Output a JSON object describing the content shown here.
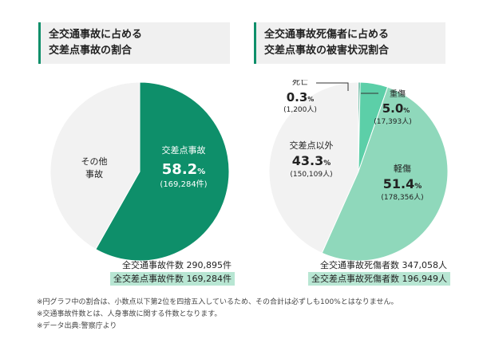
{
  "left": {
    "title_lines": [
      "全交通事故に占める",
      "交差点事故の割合"
    ],
    "total_label": "全交通事故件数 290,895件",
    "highlight_label": "全交差点事故件数 169,284件"
  },
  "right": {
    "title_lines": [
      "全交通事故死傷者に占める",
      "交差点事故の被害状況割合"
    ],
    "total_label": "全交通事故死傷者数 347,058人",
    "highlight_label": "全交差点事故死傷者数 196,949人"
  },
  "notes": [
    "※円グラフ中の割合は、小数点以下第2位を四捨五入しているため、その合計は必ずしも100%とはなりません。",
    "※交通事故件数とは、人身事故に関する件数となります。",
    "※データ出典:警察庁より"
  ],
  "colors": {
    "accent": "#0e8f6a",
    "light_green": "#8fd8bb",
    "mid_green": "#5ccfa8",
    "gray": "#f2f2f2",
    "highlight": "#b8e6d3"
  },
  "chart_data": [
    {
      "type": "pie",
      "slices": [
        {
          "label": "交差点事故",
          "percent": 58.2,
          "count_text": "(169,284件)",
          "color": "#0e8f6a"
        },
        {
          "label": "その他\n事故",
          "percent": 41.8,
          "count_text": "",
          "color": "#f2f2f2"
        }
      ]
    },
    {
      "type": "pie",
      "slices": [
        {
          "label": "死亡",
          "percent": 0.3,
          "count_text": "(1,200人)",
          "color": "#0e8f6a"
        },
        {
          "label": "重傷",
          "percent": 5.0,
          "count_text": "(17,393人)",
          "color": "#5ccfa8"
        },
        {
          "label": "軽傷",
          "percent": 51.4,
          "count_text": "(178,356人)",
          "color": "#8fd8bb"
        },
        {
          "label": "交差点以外",
          "percent": 43.3,
          "count_text": "(150,109人)",
          "color": "#f2f2f2"
        }
      ]
    }
  ]
}
